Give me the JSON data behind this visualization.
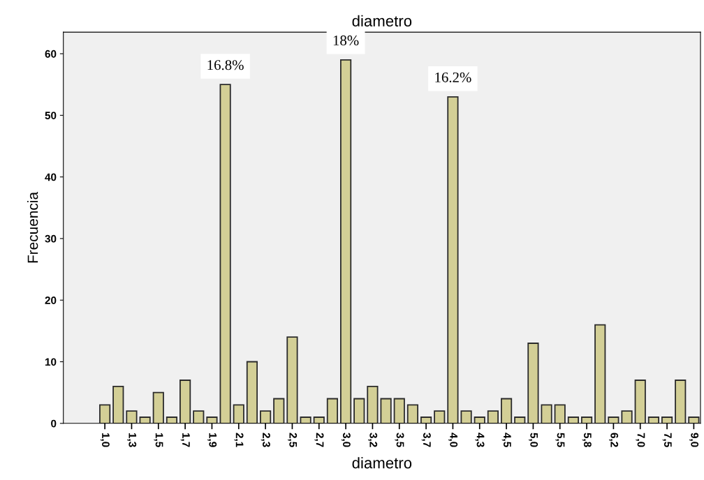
{
  "chart_data": {
    "type": "bar",
    "title": "diametro",
    "xlabel": "diametro",
    "ylabel": "Frecuencia",
    "categories": [
      "1,0",
      null,
      "1,3",
      null,
      "1,5",
      null,
      "1,7",
      null,
      "1,9",
      null,
      "2,1",
      null,
      "2,3",
      null,
      "2,5",
      null,
      "2,7",
      null,
      "3,0",
      null,
      "3,2",
      null,
      "3,5",
      null,
      "3,7",
      null,
      "4,0",
      null,
      "4,3",
      null,
      "4,5",
      null,
      "5,0",
      null,
      "5,5",
      null,
      "5,8",
      null,
      "6,2",
      null,
      "7,0",
      null,
      "7,5",
      null,
      "9,0"
    ],
    "values": [
      3,
      6,
      2,
      1,
      5,
      1,
      7,
      2,
      1,
      55,
      3,
      10,
      2,
      4,
      14,
      1,
      1,
      4,
      59,
      4,
      6,
      4,
      4,
      3,
      1,
      2,
      53,
      2,
      1,
      2,
      4,
      1,
      13,
      3,
      3,
      1,
      1,
      16,
      1,
      2,
      7,
      1,
      1,
      7,
      1
    ],
    "annotations": [
      {
        "text": "16.8%",
        "y": 55
      },
      {
        "text": "18%",
        "x": "3,0",
        "y": 59
      },
      {
        "text": "16.2%",
        "y": 53
      }
    ],
    "color": "#d3cf96",
    "ylim": [
      0,
      63.5
    ],
    "yticks": [
      0,
      10,
      20,
      30,
      40,
      50,
      60
    ],
    "grid": false,
    "legend": false
  }
}
